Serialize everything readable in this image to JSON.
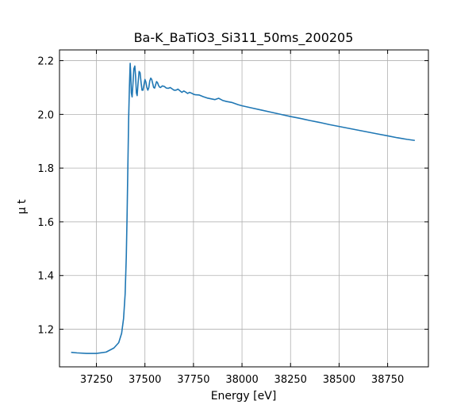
{
  "chart_data": {
    "type": "line",
    "title": "Ba-K_BaTiO3_Si311_50ms_200205",
    "xlabel": "Energy [eV]",
    "ylabel": "μ t",
    "xlim": [
      37060,
      38960
    ],
    "ylim": [
      1.06,
      2.24
    ],
    "xticks": [
      37250,
      37500,
      37750,
      38000,
      38250,
      38500,
      38750
    ],
    "xtick_labels": [
      "37250",
      "37500",
      "37750",
      "38000",
      "38250",
      "38500",
      "38750"
    ],
    "yticks": [
      1.2,
      1.4,
      1.6,
      1.8,
      2.0,
      2.2
    ],
    "ytick_labels": [
      "1.2",
      "1.4",
      "1.6",
      "1.8",
      "2.0",
      "2.2"
    ],
    "grid": true,
    "ticks_direction": "in",
    "series": [
      {
        "color": "#1f77b4",
        "x": [
          37120,
          37150,
          37200,
          37250,
          37300,
          37340,
          37365,
          37380,
          37390,
          37398,
          37404,
          37408,
          37412,
          37416,
          37420,
          37424,
          37427,
          37430,
          37434,
          37438,
          37443,
          37448,
          37452,
          37456,
          37460,
          37465,
          37470,
          37475,
          37480,
          37485,
          37490,
          37495,
          37500,
          37505,
          37510,
          37515,
          37520,
          37525,
          37530,
          37535,
          37540,
          37545,
          37550,
          37555,
          37560,
          37565,
          37570,
          37575,
          37580,
          37590,
          37600,
          37610,
          37620,
          37630,
          37640,
          37650,
          37660,
          37670,
          37680,
          37690,
          37700,
          37710,
          37720,
          37730,
          37740,
          37750,
          37760,
          37780,
          37800,
          37820,
          37840,
          37860,
          37880,
          37900,
          37920,
          37950,
          37980,
          38000,
          38050,
          38100,
          38150,
          38200,
          38250,
          38300,
          38350,
          38400,
          38450,
          38500,
          38550,
          38600,
          38650,
          38700,
          38750,
          38800,
          38850,
          38890
        ],
        "y": [
          1.114,
          1.112,
          1.11,
          1.11,
          1.115,
          1.13,
          1.15,
          1.185,
          1.24,
          1.33,
          1.47,
          1.62,
          1.8,
          1.98,
          2.1,
          2.19,
          2.15,
          2.08,
          2.065,
          2.11,
          2.17,
          2.18,
          2.14,
          2.08,
          2.07,
          2.12,
          2.16,
          2.155,
          2.12,
          2.09,
          2.09,
          2.11,
          2.13,
          2.12,
          2.1,
          2.09,
          2.1,
          2.125,
          2.135,
          2.13,
          2.115,
          2.1,
          2.098,
          2.11,
          2.122,
          2.118,
          2.108,
          2.102,
          2.1,
          2.106,
          2.104,
          2.098,
          2.097,
          2.1,
          2.095,
          2.09,
          2.09,
          2.094,
          2.088,
          2.082,
          2.087,
          2.083,
          2.078,
          2.082,
          2.079,
          2.075,
          2.073,
          2.072,
          2.066,
          2.061,
          2.058,
          2.055,
          2.06,
          2.052,
          2.048,
          2.044,
          2.036,
          2.032,
          2.024,
          2.016,
          2.008,
          2.0,
          1.992,
          1.985,
          1.977,
          1.97,
          1.962,
          1.955,
          1.948,
          1.941,
          1.934,
          1.927,
          1.92,
          1.913,
          1.907,
          1.903
        ]
      }
    ]
  }
}
